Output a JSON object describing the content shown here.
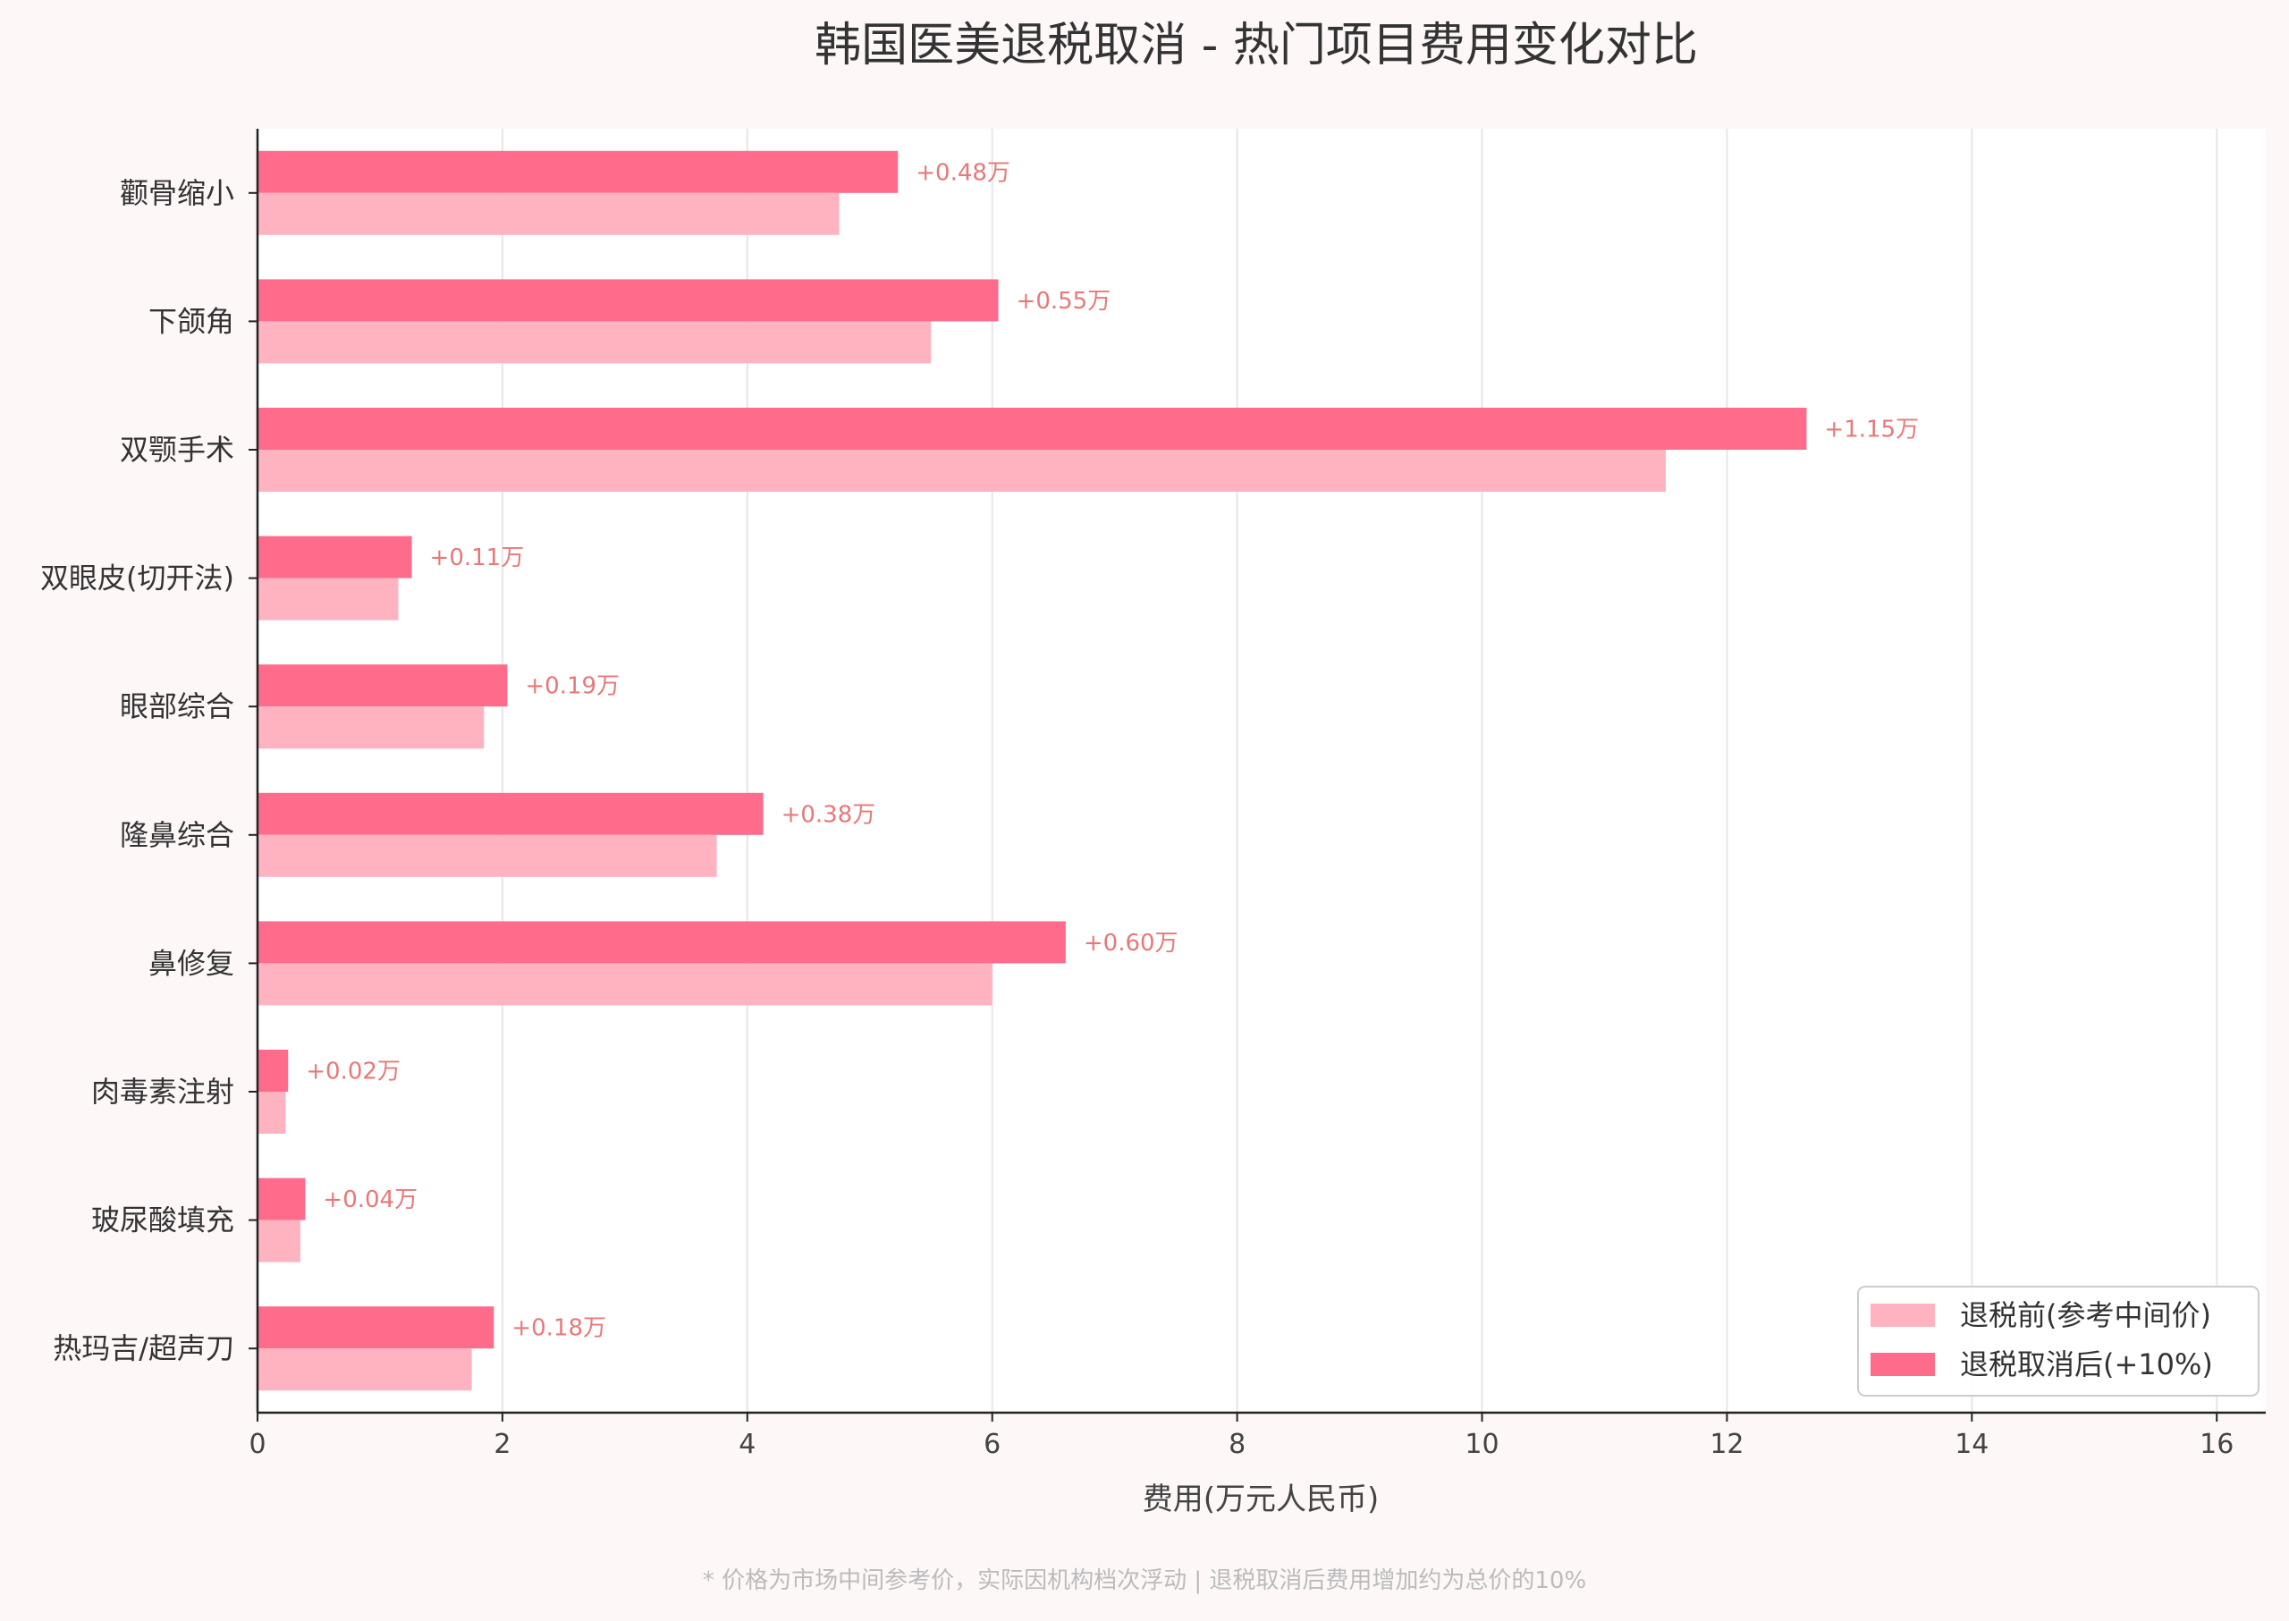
{
  "chart_data": {
    "type": "bar",
    "orientation": "horizontal",
    "title": "韩国医美退税取消 - 热门项目费用变化对比",
    "xlabel": "费用(万元人民币)",
    "ylabel": "",
    "xlim": [
      0,
      16.4
    ],
    "xticks": [
      0,
      2,
      4,
      6,
      8,
      10,
      12,
      14,
      16
    ],
    "grid": "vertical",
    "legend_position": "bottom-right",
    "categories": [
      "颧骨缩小",
      "下颌角",
      "双颚手术",
      "双眼皮(切开法)",
      "眼部综合",
      "隆鼻综合",
      "鼻修复",
      "肉毒素注射",
      "玻尿酸填充",
      "热玛吉/超声刀"
    ],
    "series": [
      {
        "name": "退税前(参考中间价)",
        "color": "#ffb3c1",
        "values": [
          4.75,
          5.5,
          11.5,
          1.15,
          1.85,
          3.75,
          6.0,
          0.23,
          0.35,
          1.75
        ]
      },
      {
        "name": "退税取消后(+10%)",
        "color": "#ff6b8a",
        "values": [
          5.23,
          6.05,
          12.65,
          1.26,
          2.04,
          4.13,
          6.6,
          0.25,
          0.39,
          1.93
        ]
      }
    ],
    "annotations": [
      "+0.48万",
      "+0.55万",
      "+1.15万",
      "+0.11万",
      "+0.19万",
      "+0.38万",
      "+0.60万",
      "+0.02万",
      "+0.04万",
      "+0.18万"
    ],
    "annotation_color": "#e87878",
    "footnote": "* 价格为市场中间参考价，实际因机构档次浮动 | 退税取消后费用增加约为总价的10%"
  }
}
